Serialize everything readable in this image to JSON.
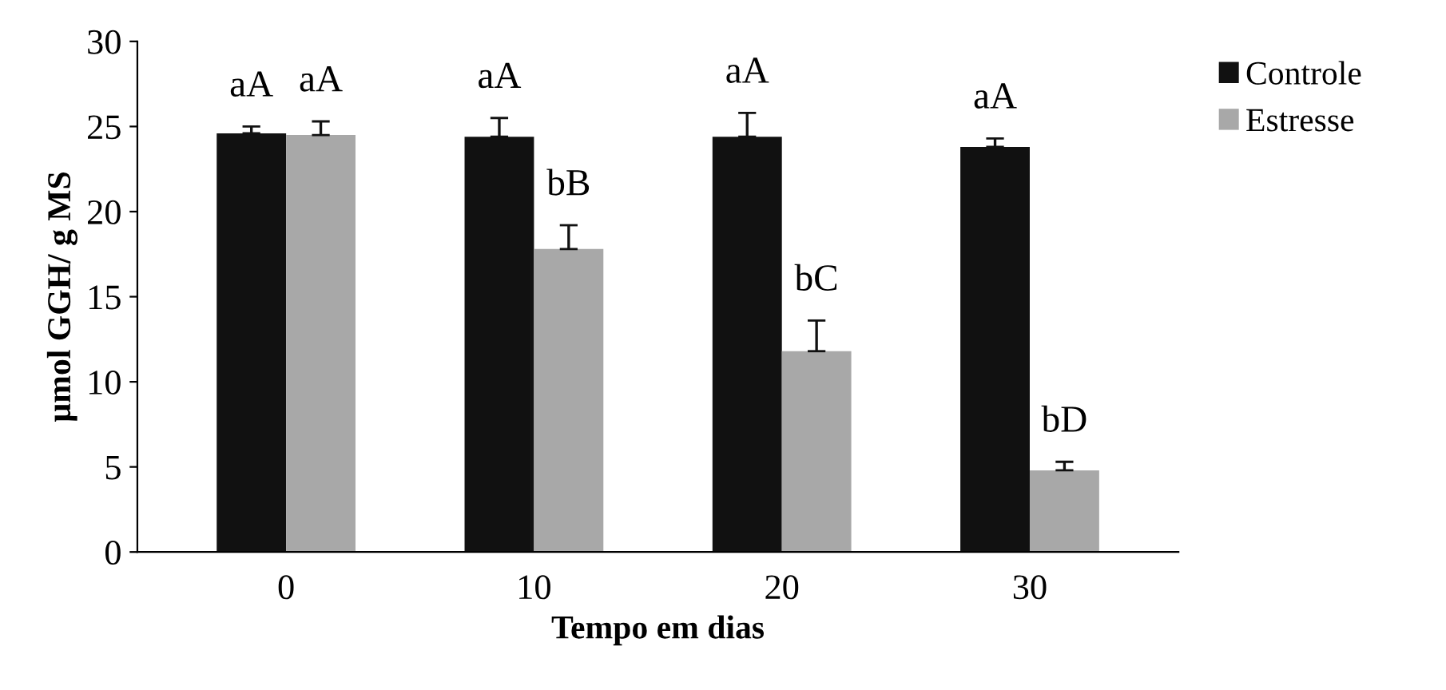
{
  "chart_data": {
    "type": "bar",
    "xlabel": "Tempo em dias",
    "ylabel": "µmol GGH/ g MS",
    "categories": [
      "0",
      "10",
      "20",
      "30"
    ],
    "series": [
      {
        "name": "Controle",
        "color": "#111111",
        "values": [
          24.6,
          24.4,
          24.4,
          23.8
        ],
        "errors": [
          0.4,
          1.1,
          1.4,
          0.5
        ]
      },
      {
        "name": "Estresse",
        "color": "#a8a8a8",
        "values": [
          24.5,
          17.8,
          11.8,
          4.8
        ],
        "errors": [
          0.8,
          1.4,
          1.8,
          0.5
        ]
      }
    ],
    "ylim": [
      0,
      30
    ],
    "yticks": [
      0,
      5,
      10,
      15,
      20,
      25,
      30
    ],
    "grid": false,
    "legend": "top right",
    "annotations": [
      {
        "text": "aA",
        "x": "0",
        "y": 24.6
      },
      {
        "text": "aA",
        "x": "0",
        "y": 24.5
      },
      {
        "text": "aA",
        "x": "10",
        "y": 24.4
      },
      {
        "text": "bB",
        "x": "10",
        "y": 17.8
      },
      {
        "text": "aA",
        "x": "20",
        "y": 24.4
      },
      {
        "text": "bC",
        "x": "20",
        "y": 11.8
      },
      {
        "text": "aA",
        "x": "30",
        "y": 23.8
      },
      {
        "text": "bD",
        "x": "30",
        "y": 4.8
      }
    ]
  }
}
